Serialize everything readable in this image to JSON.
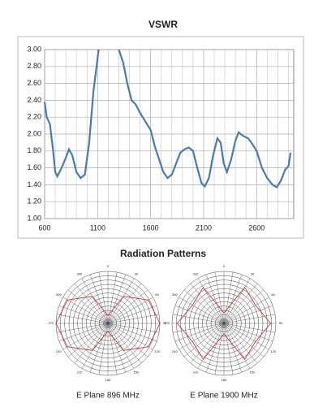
{
  "chart_data": [
    {
      "type": "line",
      "title": "VSWR",
      "x": [
        600,
        620,
        650,
        680,
        700,
        720,
        760,
        800,
        830,
        860,
        900,
        940,
        980,
        1020,
        1060,
        1100,
        1110,
        null,
        1300,
        1340,
        1380,
        1420,
        1460,
        1500,
        1550,
        1600,
        1640,
        1680,
        1720,
        1760,
        1800,
        1840,
        1880,
        1920,
        1960,
        2000,
        2040,
        2080,
        2110,
        2150,
        2190,
        2230,
        2260,
        2290,
        2320,
        2360,
        2400,
        2430,
        2470,
        2520,
        2560,
        2600,
        2650,
        2700,
        2750,
        2790,
        2830,
        2870,
        2900,
        2920
      ],
      "series": [
        {
          "name": "VSWR",
          "color": "#4a7ab0",
          "values": [
            2.38,
            2.2,
            2.12,
            1.8,
            1.55,
            1.5,
            1.6,
            1.72,
            1.82,
            1.75,
            1.55,
            1.48,
            1.52,
            1.9,
            2.5,
            2.9,
            3.0,
            null,
            3.0,
            2.85,
            2.6,
            2.4,
            2.35,
            2.25,
            2.15,
            2.05,
            1.85,
            1.7,
            1.55,
            1.48,
            1.52,
            1.65,
            1.78,
            1.82,
            1.84,
            1.8,
            1.6,
            1.42,
            1.38,
            1.48,
            1.75,
            1.95,
            1.9,
            1.65,
            1.55,
            1.7,
            1.92,
            2.02,
            1.98,
            1.95,
            1.88,
            1.8,
            1.6,
            1.48,
            1.4,
            1.37,
            1.45,
            1.58,
            1.62,
            1.78
          ]
        }
      ],
      "xlim": [
        600,
        2950
      ],
      "xticks": [
        600,
        1100,
        1600,
        2100,
        2600
      ],
      "xminor": [
        700,
        800,
        900,
        1000,
        1200,
        1300,
        1400,
        1500,
        1700,
        1800,
        1900,
        2000,
        2200,
        2300,
        2400,
        2500,
        2700,
        2800,
        2900
      ],
      "ylim": [
        1,
        3
      ],
      "yticks": [
        {
          "value": 1,
          "label": "1.00"
        },
        {
          "value": 1.2,
          "label": "1.20"
        },
        {
          "value": 1.4,
          "label": "1.40"
        },
        {
          "value": 1.6,
          "label": "1.60"
        },
        {
          "value": 1.8,
          "label": "1.80"
        },
        {
          "value": 2,
          "label": "2.00"
        },
        {
          "value": 2.2,
          "label": "2.20"
        },
        {
          "value": 2.4,
          "label": "2.40"
        },
        {
          "value": 2.6,
          "label": "2.60"
        },
        {
          "value": 2.8,
          "label": "2.80"
        },
        {
          "value": 3,
          "label": "3.00"
        }
      ],
      "grid": true
    },
    {
      "type": "polar",
      "title": "Radiation Patterns",
      "angles": [
        0,
        30,
        60,
        90,
        120,
        150,
        180,
        210,
        240,
        270,
        300,
        330
      ],
      "rlim": [
        0,
        1
      ],
      "series": [
        {
          "name": "E Plane 896 MHz",
          "color": "#cc2222",
          "values": [
            0.15,
            0.6,
            0.9,
            1,
            0.9,
            0.6,
            0.15,
            0.6,
            0.9,
            1,
            0.9,
            0.6
          ]
        },
        {
          "name": "E Plane 1900 MHz",
          "color": "#cc2222",
          "values": [
            0.2,
            0.8,
            0.7,
            0.9,
            0.7,
            0.8,
            0.2,
            0.8,
            0.7,
            0.9,
            0.7,
            0.8
          ]
        }
      ]
    }
  ]
}
